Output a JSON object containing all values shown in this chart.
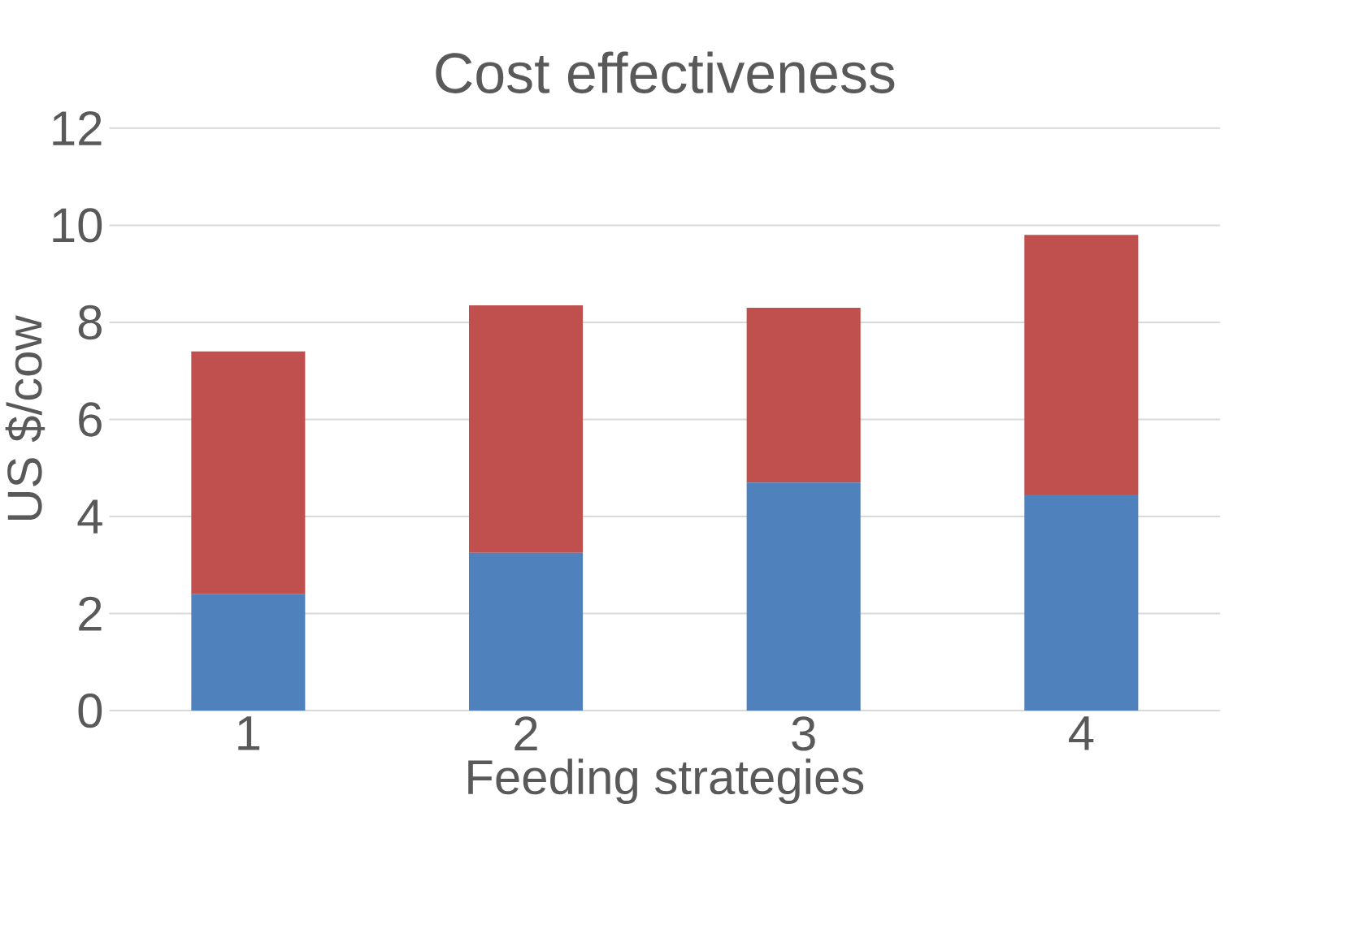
{
  "chart_data": {
    "type": "bar",
    "title": "Cost effectiveness",
    "xlabel": "Feeding strategies",
    "ylabel": "US $/cow",
    "categories": [
      "1",
      "2",
      "3",
      "4"
    ],
    "stacked": true,
    "series": [
      {
        "color": "#4f81bd",
        "values": [
          2.4,
          3.25,
          4.7,
          4.45
        ]
      },
      {
        "color": "#c0504d",
        "values": [
          5.0,
          5.1,
          3.6,
          5.35
        ]
      }
    ],
    "ylim": [
      0,
      12
    ],
    "yticks": [
      0,
      2,
      4,
      6,
      8,
      10,
      12
    ],
    "grid": "y"
  }
}
